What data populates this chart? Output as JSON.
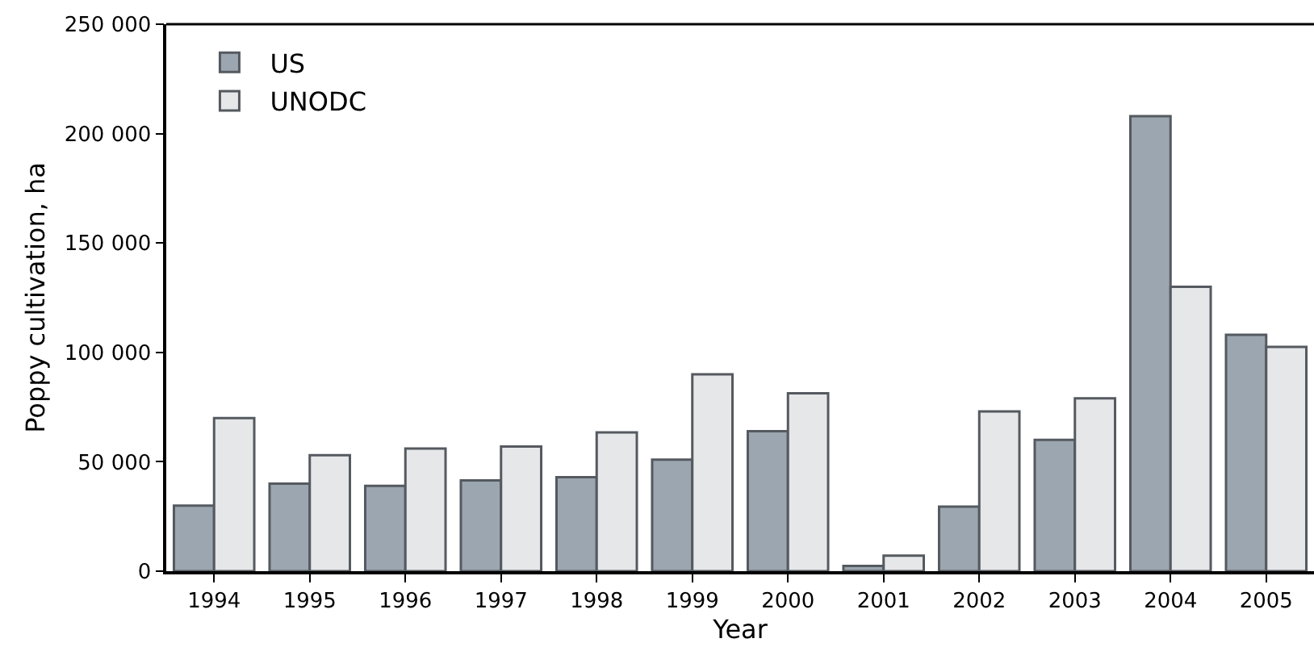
{
  "chart_data": {
    "type": "bar",
    "xlabel": "Year",
    "ylabel": "Poppy cultivation, ha",
    "categories": [
      "1994",
      "1995",
      "1996",
      "1997",
      "1998",
      "1999",
      "2000",
      "2001",
      "2002",
      "2003",
      "2004",
      "2005"
    ],
    "series": [
      {
        "name": "US",
        "color": "#9ca6b0",
        "values": [
          30000,
          40000,
          39000,
          41500,
          43000,
          51000,
          64000,
          2400,
          29500,
          60000,
          208000,
          108000
        ]
      },
      {
        "name": "UNODC",
        "color": "#e6e7e9",
        "values": [
          70000,
          53000,
          56000,
          57000,
          63400,
          90000,
          81300,
          7100,
          73000,
          79000,
          130000,
          102500
        ]
      }
    ],
    "ylim": [
      0,
      250000
    ],
    "yticks": [
      {
        "value": 0,
        "label": "0"
      },
      {
        "value": 50000,
        "label": "50 000"
      },
      {
        "value": 100000,
        "label": "100 000"
      },
      {
        "value": 150000,
        "label": "150 000"
      },
      {
        "value": 200000,
        "label": "200 000"
      },
      {
        "value": 250000,
        "label": "250 000"
      }
    ],
    "grid": false,
    "legend": "top left"
  }
}
